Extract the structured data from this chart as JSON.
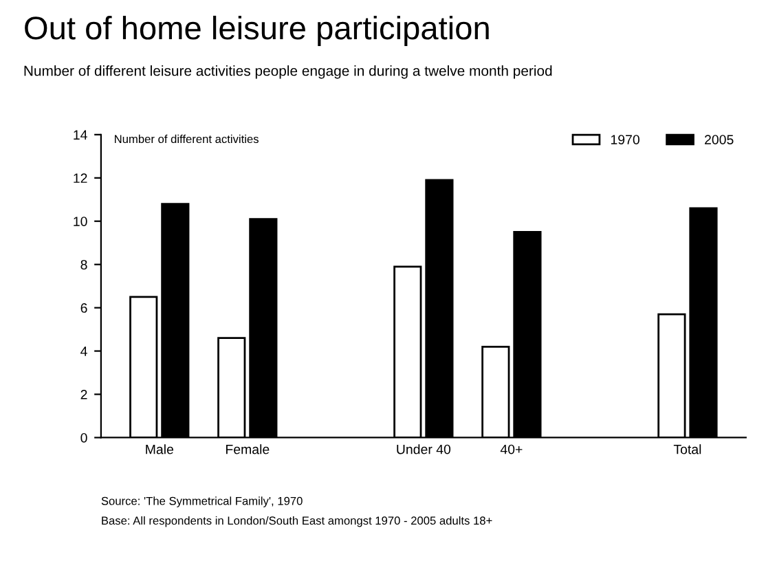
{
  "chart_data": {
    "type": "bar",
    "title": "Out of home leisure participation",
    "subtitle": "Number of different leisure activities people engage in during a twelve month period",
    "ylabel": "Number of different activities",
    "categories": [
      "Male",
      "Female",
      null,
      "Under 40",
      "40+",
      null,
      "Total"
    ],
    "series": [
      {
        "name": "1970",
        "color": "#ffffff",
        "values": [
          6.5,
          4.6,
          null,
          7.9,
          4.2,
          null,
          5.7
        ]
      },
      {
        "name": "2005",
        "color": "#000000",
        "values": [
          10.8,
          10.1,
          null,
          11.9,
          9.5,
          null,
          10.6
        ]
      }
    ],
    "ylim": [
      0,
      14
    ],
    "yticks": [
      0,
      2,
      4,
      6,
      8,
      10,
      12,
      14
    ],
    "grid": false,
    "legend": "top right",
    "annotations": [
      "Source: 'The Symmetrical Family', 1970",
      "Base: All respondents in London/South East amongst 1970 - 2005 adults 18+"
    ]
  }
}
